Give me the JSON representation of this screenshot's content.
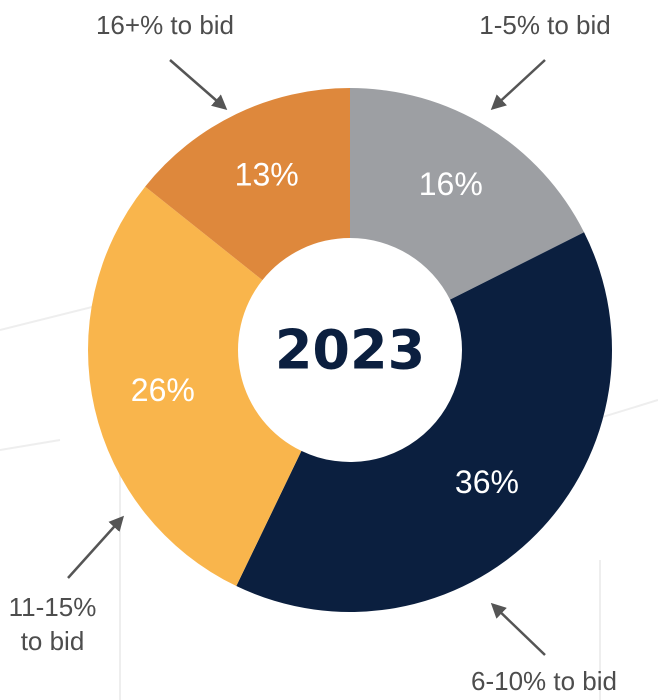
{
  "chart_data": {
    "type": "donut",
    "title": "2023",
    "categories": [
      "1-5% to bid",
      "6-10% to bid",
      "11-15% to bid",
      "16+% to bid"
    ],
    "values": [
      16,
      36,
      26,
      13
    ],
    "value_labels": [
      "16%",
      "36%",
      "26%",
      "13%"
    ],
    "colors": [
      "#9d9fa3",
      "#0b1f3f",
      "#f9b54c",
      "#de883c"
    ]
  }
}
